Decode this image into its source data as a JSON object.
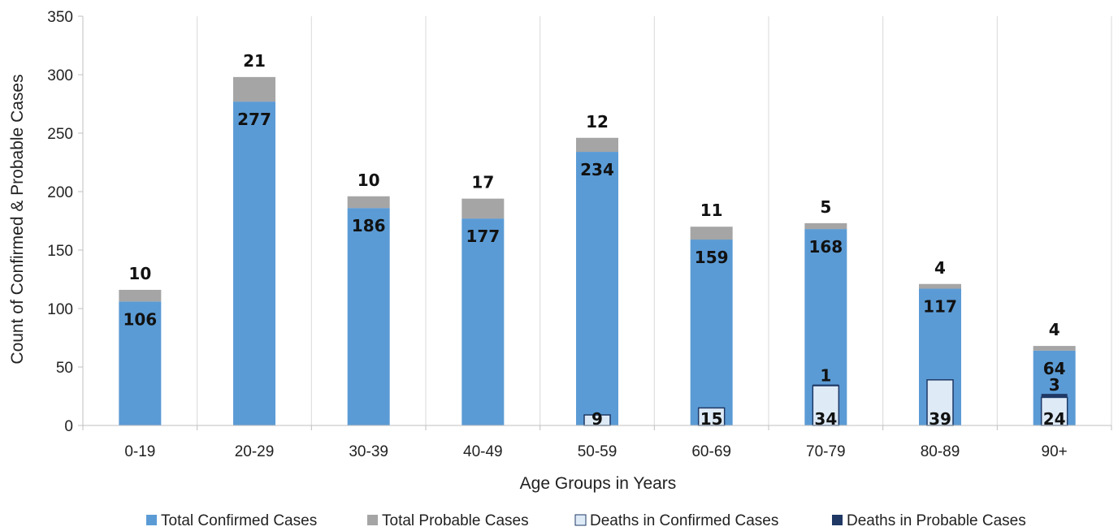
{
  "chart_data": {
    "type": "bar",
    "stacked": true,
    "xlabel": "Age Groups in Years",
    "ylabel": "Count of Confirmed & Probable Cases",
    "ylim": [
      0,
      350
    ],
    "yticks": [
      "0",
      "50",
      "100",
      "150",
      "200",
      "250",
      "300",
      "350"
    ],
    "categories": [
      "0-19",
      "20-29",
      "30-39",
      "40-49",
      "50-59",
      "60-69",
      "70-79",
      "80-89",
      "90+"
    ],
    "grid": "vertical",
    "legend_position": "bottom",
    "series": [
      {
        "name": "Total Confirmed Cases",
        "color": "#5b9bd5",
        "values": [
          106,
          277,
          186,
          177,
          234,
          159,
          168,
          117,
          64
        ]
      },
      {
        "name": "Total Probable Cases",
        "color": "#a5a5a5",
        "values": [
          10,
          21,
          10,
          17,
          12,
          11,
          5,
          4,
          4
        ]
      },
      {
        "name": "Deaths in Confirmed Cases",
        "color": "#deebf7",
        "values": [
          null,
          null,
          null,
          null,
          9,
          15,
          34,
          39,
          24
        ]
      },
      {
        "name": "Deaths in Probable Cases",
        "color": "#1f3864",
        "values": [
          null,
          null,
          null,
          null,
          null,
          null,
          1,
          null,
          3
        ]
      }
    ]
  }
}
